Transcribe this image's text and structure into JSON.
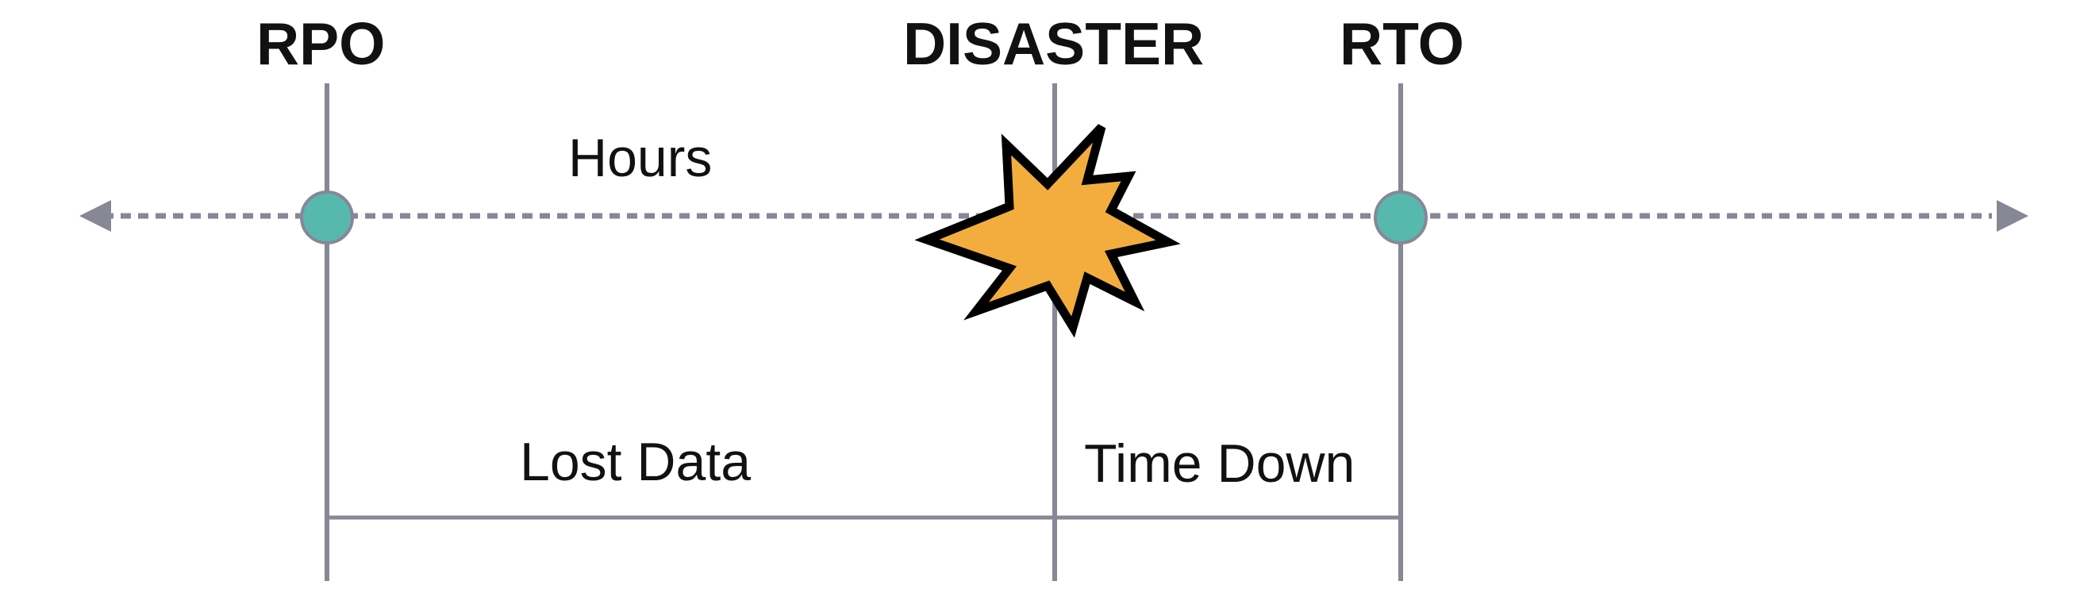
{
  "labels": {
    "rpo": "RPO",
    "disaster": "DISASTER",
    "rto": "RTO",
    "timeline": "Hours",
    "lost_data": "Lost Data",
    "time_down": "Time Down"
  },
  "icons": {
    "disaster_marker": "explosion-burst-icon",
    "milestone_marker": "circle-node-icon"
  },
  "colors": {
    "line": "#878796",
    "node_fill": "#57b8ae",
    "burst_fill": "#f3ad3f",
    "burst_stroke": "#000000",
    "text": "#111111"
  }
}
